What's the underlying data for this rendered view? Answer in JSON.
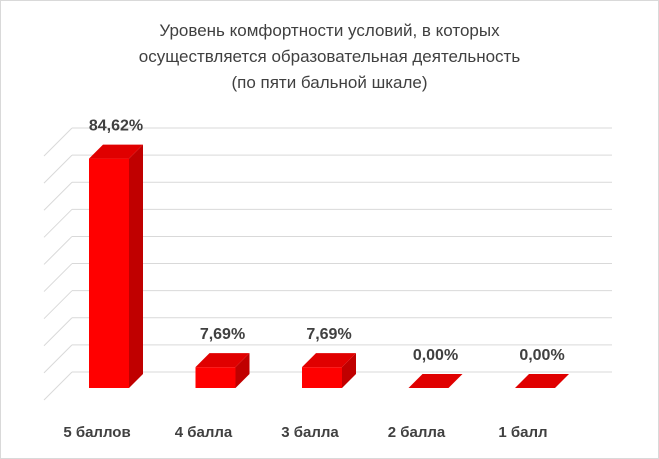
{
  "chart_data": {
    "type": "bar",
    "title_lines": [
      "Уровень комфортности условий, в которых",
      "осуществляется образовательная деятельность",
      "(по пяти бальной шкале)"
    ],
    "categories": [
      "5 баллов",
      "4 балла",
      "3  балла",
      "2 балла",
      "1 балл"
    ],
    "values": [
      84.62,
      7.69,
      7.69,
      0.0,
      0.0
    ],
    "value_labels": [
      "84,62%",
      "7,69%",
      "7,69%",
      "0,00%",
      "0,00%"
    ],
    "ylim": [
      0,
      90
    ],
    "grid": true,
    "legend": "none",
    "colors": {
      "bar_front": "#ff0000",
      "bar_side": "#c00000",
      "bar_top": "#e00000",
      "grid": "#d9d9d9"
    }
  }
}
